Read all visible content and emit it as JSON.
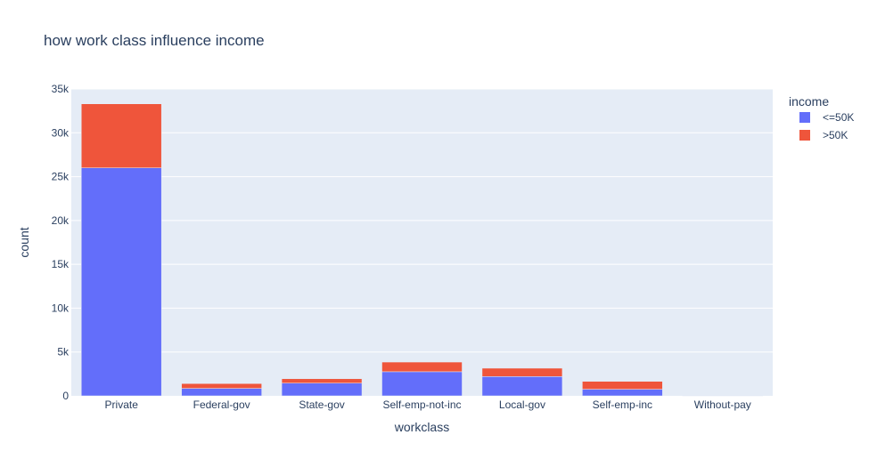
{
  "chart_data": {
    "type": "bar",
    "barmode": "stack",
    "title": "how work class influence income",
    "xlabel": "workclass",
    "ylabel": "count",
    "ylim": [
      0,
      35000
    ],
    "yticks": [
      0,
      5000,
      10000,
      15000,
      20000,
      25000,
      30000,
      35000
    ],
    "ytick_labels": [
      "0",
      "5k",
      "10k",
      "15k",
      "20k",
      "25k",
      "30k",
      "35k"
    ],
    "grid": true,
    "legend_title": "income",
    "legend_position": "top-right",
    "categories": [
      "Private",
      "Federal-gov",
      "State-gov",
      "Self-emp-not-inc",
      "Local-gov",
      "Self-emp-inc",
      "Without-pay"
    ],
    "series": [
      {
        "name": "<=50K",
        "color": "#636efa",
        "values": [
          26000,
          850,
          1450,
          2750,
          2200,
          750,
          15
        ]
      },
      {
        "name": ">50K",
        "color": "#ef553b",
        "values": [
          7300,
          550,
          500,
          1100,
          950,
          900,
          3
        ]
      }
    ],
    "plot_background": "#e5ecf6"
  }
}
